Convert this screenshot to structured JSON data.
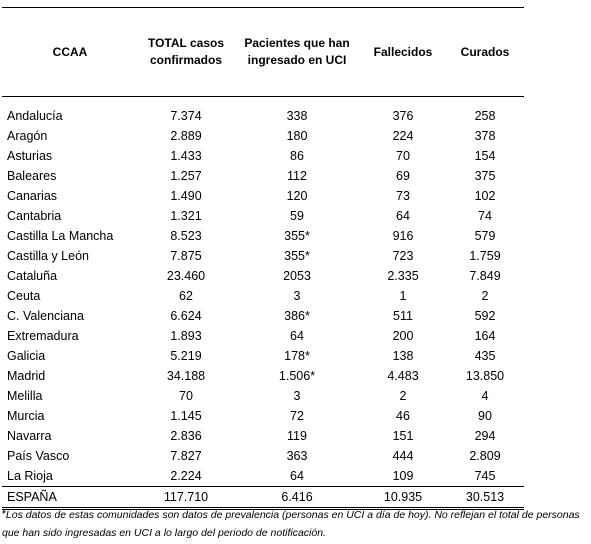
{
  "table": {
    "headers": [
      "CCAA",
      "TOTAL casos confirmados",
      "Pacientes que han ingresado en UCI",
      "Fallecidos",
      "Curados"
    ],
    "rows": [
      [
        "Andalucía",
        "7.374",
        "338",
        "376",
        "258"
      ],
      [
        "Aragón",
        "2.889",
        "180",
        "224",
        "378"
      ],
      [
        "Asturias",
        "1.433",
        "86",
        "70",
        "154"
      ],
      [
        "Baleares",
        "1.257",
        "112",
        "69",
        "375"
      ],
      [
        "Canarias",
        "1.490",
        "120",
        "73",
        "102"
      ],
      [
        "Cantabria",
        "1.321",
        "59",
        "64",
        "74"
      ],
      [
        "Castilla La Mancha",
        "8.523",
        "355*",
        "916",
        "579"
      ],
      [
        "Castilla y León",
        "7.875",
        "355*",
        "723",
        "1.759"
      ],
      [
        "Cataluña",
        "23.460",
        "2053",
        "2.335",
        "7.849"
      ],
      [
        "Ceuta",
        "62",
        "3",
        "1",
        "2"
      ],
      [
        "C. Valenciana",
        "6.624",
        "386*",
        "511",
        "592"
      ],
      [
        "Extremadura",
        "1.893",
        "64",
        "200",
        "164"
      ],
      [
        "Galicia",
        "5.219",
        "178*",
        "138",
        "435"
      ],
      [
        "Madrid",
        "34.188",
        "1.506*",
        "4.483",
        "13.850"
      ],
      [
        "Melilla",
        "70",
        "3",
        "2",
        "4"
      ],
      [
        "Murcia",
        "1.145",
        "72",
        "46",
        "90"
      ],
      [
        "Navarra",
        "2.836",
        "119",
        "151",
        "294"
      ],
      [
        "País Vasco",
        "7.827",
        "363",
        "444",
        "2.809"
      ],
      [
        "La Rioja",
        "2.224",
        "64",
        "109",
        "745"
      ]
    ],
    "total": [
      "ESPAÑA",
      "117.710",
      "6.416",
      "10.935",
      "30.513"
    ]
  },
  "footnote": {
    "marker": "¥",
    "text": "Los datos de estas comunidades son datos de prevalencia (personas en UCI a día de hoy). No reflejan el total de personas que han sido ingresadas en UCI a lo largo del periodo de notificación."
  }
}
